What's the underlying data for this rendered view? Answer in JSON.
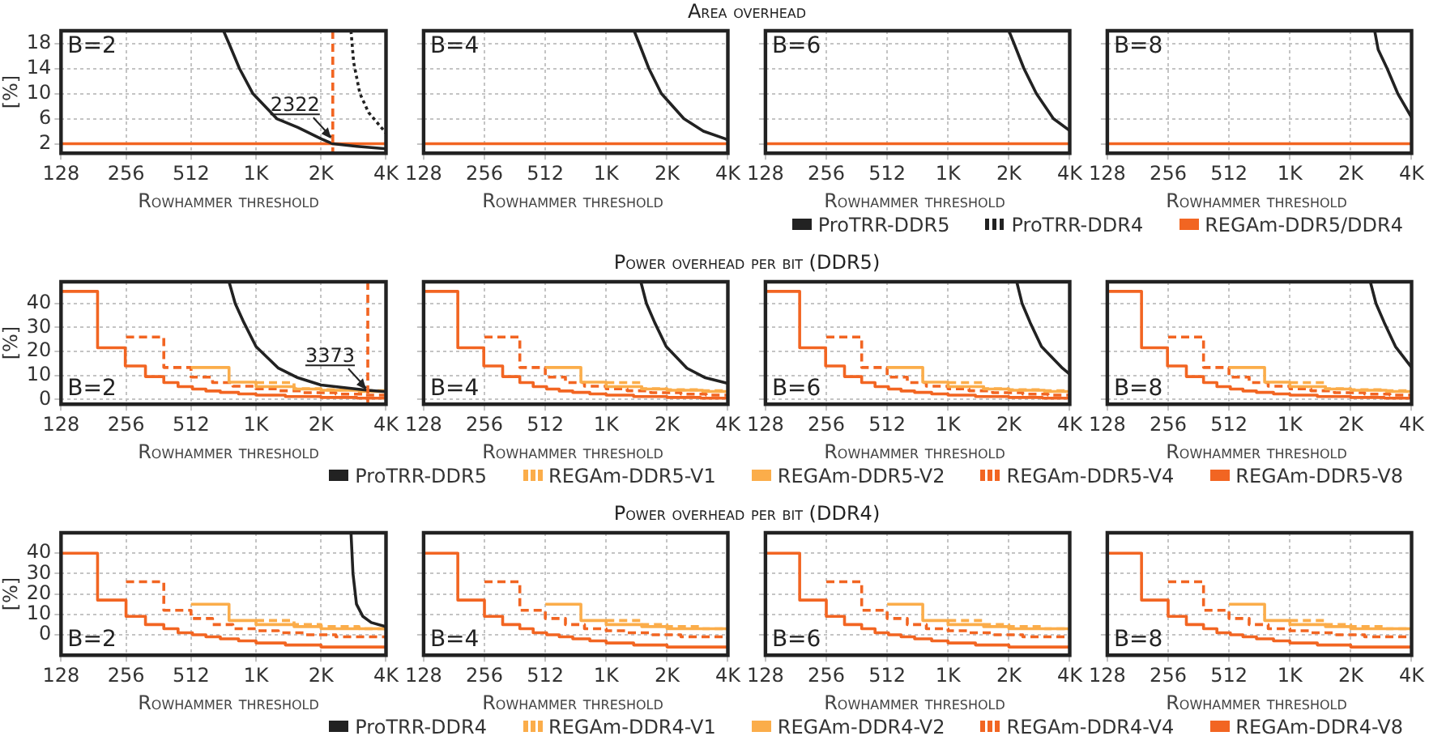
{
  "chart_data": [
    {
      "type": "line",
      "xlabel": "Rowhammer threshold",
      "ylabel": "[%]",
      "log": "x",
      "grid": true,
      "legend": "bottom",
      "xlim": [
        128,
        4096
      ],
      "ylim": [
        0.5,
        20
      ],
      "xticks": [
        128,
        256,
        512,
        {
          "value": 1024,
          "label": "1K"
        },
        {
          "value": 2048,
          "label": "2K"
        },
        {
          "value": 4096,
          "label": "4K"
        }
      ],
      "yticks": [
        2,
        6,
        10,
        14,
        18
      ],
      "annotations": [
        "B=2"
      ],
      "ref_lines": [
        {
          "axis": "x",
          "value": 2322,
          "label": "2322",
          "color": "#f26522",
          "line_style": "dashed"
        }
      ],
      "series": [
        {
          "name": "ProTRR-DDR5",
          "type": "line",
          "color": "#222222",
          "line_style": "solid",
          "x": [
            724,
            767,
            858,
            990,
            1278,
            1600,
            2048,
            2322,
            3000,
            4096
          ],
          "values": [
            20,
            18,
            14,
            10,
            6,
            4.6,
            2.8,
            2,
            1.6,
            1.2
          ]
        },
        {
          "name": "ProTRR-DDR4",
          "type": "line",
          "color": "#222222",
          "line_style": "dotted",
          "x": [
            2820,
            2900,
            3100,
            3400,
            4096
          ],
          "values": [
            20,
            15,
            10,
            7,
            3.7
          ]
        },
        {
          "name": "REGAm-DDR5/DDR4",
          "type": "line",
          "color": "#f26522",
          "line_style": "solid",
          "x": [
            128,
            4096
          ],
          "values": [
            2,
            2
          ]
        }
      ]
    },
    {
      "type": "line",
      "title": "Area overhead",
      "xlabel": "Rowhammer threshold",
      "log": "x",
      "grid": true,
      "tick_labels": "x",
      "xlim": [
        128,
        4096
      ],
      "ylim": [
        0.5,
        20
      ],
      "xticks": [
        128,
        256,
        512,
        {
          "value": 1024,
          "label": "1K"
        },
        {
          "value": 2048,
          "label": "2K"
        },
        {
          "value": 4096,
          "label": "4K"
        }
      ],
      "yticks": [
        2,
        6,
        10,
        14,
        18
      ],
      "annotations": [
        "B=4"
      ],
      "series": [
        {
          "type": "line",
          "color": "#222222",
          "line_style": "solid",
          "x": [
            1408,
            1490,
            1665,
            1920,
            2480,
            3100,
            3972,
            4096
          ],
          "values": [
            20,
            18,
            14,
            10,
            6,
            4,
            2.8,
            2.6
          ]
        },
        {
          "type": "line",
          "color": "#f26522",
          "line_style": "solid",
          "x": [
            128,
            4096
          ],
          "values": [
            2,
            2
          ]
        }
      ]
    },
    {
      "type": "line",
      "xlabel": "Rowhammer threshold",
      "log": "x",
      "grid": true,
      "tick_labels": "x",
      "xlim": [
        128,
        4096
      ],
      "ylim": [
        0.5,
        20
      ],
      "xticks": [
        128,
        256,
        512,
        {
          "value": 1024,
          "label": "1K"
        },
        {
          "value": 2048,
          "label": "2K"
        },
        {
          "value": 4096,
          "label": "4K"
        }
      ],
      "yticks": [
        2,
        6,
        10,
        14,
        18
      ],
      "annotations": [
        "B=6"
      ],
      "series": [
        {
          "type": "line",
          "color": "#222222",
          "line_style": "solid",
          "x": [
            2048,
            2170,
            2430,
            2800,
            3400,
            4096
          ],
          "values": [
            20,
            18,
            14,
            10,
            6,
            4.1
          ]
        },
        {
          "type": "line",
          "color": "#f26522",
          "line_style": "solid",
          "x": [
            128,
            4096
          ],
          "values": [
            2,
            2
          ]
        }
      ]
    },
    {
      "type": "line",
      "xlabel": "Rowhammer threshold",
      "log": "x",
      "grid": true,
      "tick_labels": "x",
      "xlim": [
        128,
        4096
      ],
      "ylim": [
        0.5,
        20
      ],
      "xticks": [
        128,
        256,
        512,
        {
          "value": 1024,
          "label": "1K"
        },
        {
          "value": 2048,
          "label": "2K"
        },
        {
          "value": 4096,
          "label": "4K"
        }
      ],
      "yticks": [
        2,
        6,
        10,
        14,
        18
      ],
      "annotations": [
        "B=8"
      ],
      "series": [
        {
          "type": "line",
          "color": "#222222",
          "line_style": "solid",
          "x": [
            2690,
            2800,
            3100,
            3500,
            4096
          ],
          "values": [
            20,
            17,
            14,
            10,
            6.2
          ]
        },
        {
          "type": "line",
          "color": "#f26522",
          "line_style": "solid",
          "x": [
            128,
            4096
          ],
          "values": [
            2,
            2
          ]
        }
      ]
    },
    {
      "type": "line",
      "xlabel": "Rowhammer threshold",
      "ylabel": "[%]",
      "log": "x",
      "grid": true,
      "legend": "bottom",
      "xlim": [
        128,
        4096
      ],
      "ylim": [
        -2,
        49
      ],
      "xticks": [
        128,
        256,
        512,
        {
          "value": 1024,
          "label": "1K"
        },
        {
          "value": 2048,
          "label": "2K"
        },
        {
          "value": 4096,
          "label": "4K"
        }
      ],
      "yticks": [
        0,
        10,
        20,
        30,
        40
      ],
      "annotations": [
        "B=2"
      ],
      "ref_lines": [
        {
          "axis": "x",
          "value": 3373,
          "label": "3373",
          "color": "#f26522",
          "line_style": "dashed"
        }
      ],
      "series": [
        {
          "name": "ProTRR-DDR5",
          "type": "line",
          "color": "#222222",
          "line_style": "solid",
          "x": [
            768,
            820,
            900,
            1024,
            1300,
            1600,
            2048,
            3000,
            3373,
            4096
          ],
          "values": [
            49,
            40,
            32,
            22,
            13,
            9,
            6,
            4.3,
            3.8,
            3.2
          ]
        },
        {
          "name": "REGAm-DDR5-V1",
          "type": "step",
          "color": "#fbad4a",
          "line_style": "dashed",
          "x": [
            1024,
            1536,
            2048,
            3072,
            4096
          ],
          "values": [
            7,
            4.5,
            4,
            3.6,
            3.3
          ]
        },
        {
          "name": "REGAm-DDR5-V2",
          "type": "step",
          "color": "#fbad4a",
          "line_style": "solid",
          "x": [
            512,
            768,
            1024,
            1536,
            2048,
            3072,
            4096
          ],
          "values": [
            13.3,
            7.2,
            5.3,
            4.3,
            3.8,
            3.3,
            2.9
          ]
        },
        {
          "name": "REGAm-DDR5-V4",
          "type": "step",
          "color": "#f26522",
          "line_style": "dashed",
          "x": [
            256,
            383,
            512,
            644,
            800,
            1024,
            1300,
            1700,
            2400,
            3200,
            4096
          ],
          "values": [
            26,
            13.3,
            9.3,
            7,
            5.5,
            4.4,
            3.6,
            2.8,
            2.2,
            1.8,
            1.5
          ]
        },
        {
          "name": "REGAm-DDR5-V8",
          "type": "step",
          "color": "#f26522",
          "line_style": "solid",
          "x": [
            128,
            189,
            254,
            315,
            383,
            446,
            520,
            600,
            700,
            850,
            1024,
            1400,
            2048,
            3000,
            4096
          ],
          "values": [
            45,
            21.5,
            13.9,
            9.5,
            7,
            5.3,
            4.3,
            3.5,
            2.9,
            2.3,
            1.8,
            1.2,
            0.8,
            0.5,
            0.3
          ]
        }
      ]
    },
    {
      "type": "line",
      "title": "Power overhead per bit (DDR5)",
      "xlabel": "Rowhammer threshold",
      "log": "x",
      "grid": true,
      "tick_labels": "x",
      "xlim": [
        128,
        4096
      ],
      "ylim": [
        -2,
        49
      ],
      "xticks": [
        128,
        256,
        512,
        {
          "value": 1024,
          "label": "1K"
        },
        {
          "value": 2048,
          "label": "2K"
        },
        {
          "value": 4096,
          "label": "4K"
        }
      ],
      "yticks": [
        0,
        10,
        20,
        30,
        40
      ],
      "annotations": [
        "B=4"
      ],
      "series": [
        {
          "type": "line",
          "color": "#222222",
          "line_style": "solid",
          "x": [
            1520,
            1620,
            1780,
            2030,
            2570,
            3170,
            4096
          ],
          "values": [
            49,
            40,
            32,
            22,
            13,
            9,
            6.7
          ]
        },
        {
          "type": "step",
          "color": "#fbad4a",
          "line_style": "dashed",
          "x": [
            1024,
            1536,
            2048,
            3072,
            4096
          ],
          "values": [
            7,
            4.5,
            4,
            3.6,
            3.3
          ]
        },
        {
          "type": "step",
          "color": "#fbad4a",
          "line_style": "solid",
          "x": [
            512,
            768,
            1024,
            1536,
            2048,
            3072,
            4096
          ],
          "values": [
            13.3,
            7.2,
            5.3,
            4.3,
            3.8,
            3.3,
            2.9
          ]
        },
        {
          "type": "step",
          "color": "#f26522",
          "line_style": "dashed",
          "x": [
            256,
            383,
            512,
            644,
            800,
            1024,
            1300,
            1700,
            2400,
            3200,
            4096
          ],
          "values": [
            26,
            13.3,
            9.3,
            7,
            5.5,
            4.4,
            3.6,
            2.8,
            2.2,
            1.8,
            1.5
          ]
        },
        {
          "type": "step",
          "color": "#f26522",
          "line_style": "solid",
          "x": [
            128,
            189,
            254,
            315,
            383,
            446,
            520,
            600,
            700,
            850,
            1024,
            1400,
            2048,
            3000,
            4096
          ],
          "values": [
            45,
            21.5,
            13.9,
            9.5,
            7,
            5.3,
            4.3,
            3.5,
            2.9,
            2.3,
            1.8,
            1.2,
            0.8,
            0.5,
            0.3
          ]
        }
      ]
    },
    {
      "type": "line",
      "xlabel": "Rowhammer threshold",
      "log": "x",
      "grid": true,
      "tick_labels": "x",
      "xlim": [
        128,
        4096
      ],
      "ylim": [
        -2,
        49
      ],
      "xticks": [
        128,
        256,
        512,
        {
          "value": 1024,
          "label": "1K"
        },
        {
          "value": 2048,
          "label": "2K"
        },
        {
          "value": 4096,
          "label": "4K"
        }
      ],
      "yticks": [
        0,
        10,
        20,
        30,
        40
      ],
      "annotations": [
        "B=6"
      ],
      "series": [
        {
          "type": "line",
          "color": "#222222",
          "line_style": "solid",
          "x": [
            2240,
            2380,
            2610,
            2970,
            3770,
            4096
          ],
          "values": [
            49,
            40,
            32,
            22,
            13,
            10.5
          ]
        },
        {
          "type": "step",
          "color": "#fbad4a",
          "line_style": "dashed",
          "x": [
            1024,
            1536,
            2048,
            3072,
            4096
          ],
          "values": [
            7,
            4.5,
            4,
            3.6,
            3.3
          ]
        },
        {
          "type": "step",
          "color": "#fbad4a",
          "line_style": "solid",
          "x": [
            512,
            768,
            1024,
            1536,
            2048,
            3072,
            4096
          ],
          "values": [
            13.3,
            7.2,
            5.3,
            4.3,
            3.8,
            3.3,
            2.9
          ]
        },
        {
          "type": "step",
          "color": "#f26522",
          "line_style": "dashed",
          "x": [
            256,
            383,
            512,
            644,
            800,
            1024,
            1300,
            1700,
            2400,
            3200,
            4096
          ],
          "values": [
            26,
            13.3,
            9.3,
            7,
            5.5,
            4.4,
            3.6,
            2.8,
            2.2,
            1.8,
            1.5
          ]
        },
        {
          "type": "step",
          "color": "#f26522",
          "line_style": "solid",
          "x": [
            128,
            189,
            254,
            315,
            383,
            446,
            520,
            600,
            700,
            850,
            1024,
            1400,
            2048,
            3000,
            4096
          ],
          "values": [
            45,
            21.5,
            13.9,
            9.5,
            7,
            5.3,
            4.3,
            3.5,
            2.9,
            2.3,
            1.8,
            1.2,
            0.8,
            0.5,
            0.3
          ]
        }
      ]
    },
    {
      "type": "line",
      "xlabel": "Rowhammer threshold",
      "log": "x",
      "grid": true,
      "tick_labels": "x",
      "xlim": [
        128,
        4096
      ],
      "ylim": [
        -2,
        49
      ],
      "xticks": [
        128,
        256,
        512,
        {
          "value": 1024,
          "label": "1K"
        },
        {
          "value": 2048,
          "label": "2K"
        },
        {
          "value": 4096,
          "label": "4K"
        }
      ],
      "yticks": [
        0,
        10,
        20,
        30,
        40
      ],
      "annotations": [
        "B=8"
      ],
      "series": [
        {
          "type": "line",
          "color": "#222222",
          "line_style": "solid",
          "x": [
            2560,
            2730,
            3000,
            3410,
            4096
          ],
          "values": [
            49,
            40,
            32,
            22,
            13.3
          ]
        },
        {
          "type": "step",
          "color": "#fbad4a",
          "line_style": "dashed",
          "x": [
            1024,
            1536,
            2048,
            3072,
            4096
          ],
          "values": [
            7,
            4.5,
            4,
            3.6,
            3.3
          ]
        },
        {
          "type": "step",
          "color": "#fbad4a",
          "line_style": "solid",
          "x": [
            512,
            768,
            1024,
            1536,
            2048,
            3072,
            4096
          ],
          "values": [
            13.3,
            7.2,
            5.3,
            4.3,
            3.8,
            3.3,
            2.9
          ]
        },
        {
          "type": "step",
          "color": "#f26522",
          "line_style": "dashed",
          "x": [
            256,
            383,
            512,
            644,
            800,
            1024,
            1300,
            1700,
            2400,
            3200,
            4096
          ],
          "values": [
            26,
            13.3,
            9.3,
            7,
            5.5,
            4.4,
            3.6,
            2.8,
            2.2,
            1.8,
            1.5
          ]
        },
        {
          "type": "step",
          "color": "#f26522",
          "line_style": "solid",
          "x": [
            128,
            189,
            254,
            315,
            383,
            446,
            520,
            600,
            700,
            850,
            1024,
            1400,
            2048,
            3000,
            4096
          ],
          "values": [
            45,
            21.5,
            13.9,
            9.5,
            7,
            5.3,
            4.3,
            3.5,
            2.9,
            2.3,
            1.8,
            1.2,
            0.8,
            0.5,
            0.3
          ]
        }
      ]
    },
    {
      "type": "line",
      "xlabel": "Rowhammer threshold",
      "ylabel": "[%]",
      "log": "x",
      "grid": true,
      "legend": "bottom",
      "xlim": [
        128,
        4096
      ],
      "ylim": [
        -10,
        50
      ],
      "xticks": [
        128,
        256,
        512,
        {
          "value": 1024,
          "label": "1K"
        },
        {
          "value": 2048,
          "label": "2K"
        },
        {
          "value": 4096,
          "label": "4K"
        }
      ],
      "yticks": [
        0,
        10,
        20,
        30,
        40
      ],
      "annotations": [
        "B=2"
      ],
      "series": [
        {
          "name": "ProTRR-DDR4",
          "type": "line",
          "color": "#222222",
          "line_style": "solid",
          "x": [
            2820,
            2880,
            2990,
            3200,
            3500,
            4096
          ],
          "values": [
            50,
            30,
            15,
            9,
            6,
            4
          ]
        },
        {
          "name": "REGAm-DDR4-V1",
          "type": "step",
          "color": "#fbad4a",
          "line_style": "dashed",
          "x": [
            1024,
            1536,
            2048,
            3072,
            4096
          ],
          "values": [
            7,
            5,
            4,
            3,
            3
          ]
        },
        {
          "name": "REGAm-DDR4-V2",
          "type": "step",
          "color": "#fbad4a",
          "line_style": "solid",
          "x": [
            512,
            768,
            1024,
            1536,
            2048,
            3072,
            4096
          ],
          "values": [
            15,
            7,
            5,
            4,
            3,
            3,
            2
          ]
        },
        {
          "name": "REGAm-DDR4-V4",
          "type": "step",
          "color": "#f26522",
          "line_style": "dashed",
          "x": [
            256,
            383,
            512,
            644,
            800,
            1024,
            1300,
            1700,
            2400,
            3200,
            4096
          ],
          "values": [
            26,
            12,
            8,
            5,
            3,
            2,
            1,
            0,
            -1,
            -1,
            -2
          ]
        },
        {
          "name": "REGAm-DDR4-V8",
          "type": "step",
          "color": "#f26522",
          "line_style": "solid",
          "x": [
            128,
            189,
            256,
            315,
            383,
            446,
            520,
            600,
            700,
            850,
            1024,
            1400,
            2048,
            3000,
            4096
          ],
          "values": [
            40,
            17,
            9,
            5,
            3,
            1,
            0,
            -1,
            -2,
            -3,
            -4,
            -5,
            -6,
            -6,
            -6
          ]
        }
      ]
    },
    {
      "type": "line",
      "title": "Power overhead per bit (DDR4)",
      "xlabel": "Rowhammer threshold",
      "log": "x",
      "grid": true,
      "tick_labels": "x",
      "xlim": [
        128,
        4096
      ],
      "ylim": [
        -10,
        50
      ],
      "xticks": [
        128,
        256,
        512,
        {
          "value": 1024,
          "label": "1K"
        },
        {
          "value": 2048,
          "label": "2K"
        },
        {
          "value": 4096,
          "label": "4K"
        }
      ],
      "yticks": [
        0,
        10,
        20,
        30,
        40
      ],
      "annotations": [
        "B=4"
      ],
      "series": [
        {
          "type": "step",
          "color": "#fbad4a",
          "line_style": "dashed",
          "x": [
            1024,
            1536,
            2048,
            3072,
            4096
          ],
          "values": [
            7,
            5,
            4,
            3,
            3
          ]
        },
        {
          "type": "step",
          "color": "#fbad4a",
          "line_style": "solid",
          "x": [
            512,
            768,
            1024,
            1536,
            2048,
            3072,
            4096
          ],
          "values": [
            15,
            7,
            5,
            4,
            3,
            3,
            2
          ]
        },
        {
          "type": "step",
          "color": "#f26522",
          "line_style": "dashed",
          "x": [
            256,
            383,
            512,
            644,
            800,
            1024,
            1300,
            1700,
            2400,
            3200,
            4096
          ],
          "values": [
            26,
            12,
            8,
            5,
            3,
            2,
            1,
            0,
            -1,
            -1,
            -2
          ]
        },
        {
          "type": "step",
          "color": "#f26522",
          "line_style": "solid",
          "x": [
            128,
            189,
            256,
            315,
            383,
            446,
            520,
            600,
            700,
            850,
            1024,
            1400,
            2048,
            3000,
            4096
          ],
          "values": [
            40,
            17,
            9,
            5,
            3,
            1,
            0,
            -1,
            -2,
            -3,
            -4,
            -5,
            -6,
            -6,
            -6
          ]
        }
      ]
    },
    {
      "type": "line",
      "xlabel": "Rowhammer threshold",
      "log": "x",
      "grid": true,
      "tick_labels": "x",
      "xlim": [
        128,
        4096
      ],
      "ylim": [
        -10,
        50
      ],
      "xticks": [
        128,
        256,
        512,
        {
          "value": 1024,
          "label": "1K"
        },
        {
          "value": 2048,
          "label": "2K"
        },
        {
          "value": 4096,
          "label": "4K"
        }
      ],
      "yticks": [
        0,
        10,
        20,
        30,
        40
      ],
      "annotations": [
        "B=6"
      ],
      "series": [
        {
          "type": "step",
          "color": "#fbad4a",
          "line_style": "dashed",
          "x": [
            1024,
            1536,
            2048,
            3072,
            4096
          ],
          "values": [
            7,
            5,
            4,
            3,
            3
          ]
        },
        {
          "type": "step",
          "color": "#fbad4a",
          "line_style": "solid",
          "x": [
            512,
            768,
            1024,
            1536,
            2048,
            3072,
            4096
          ],
          "values": [
            15,
            7,
            5,
            4,
            3,
            3,
            2
          ]
        },
        {
          "type": "step",
          "color": "#f26522",
          "line_style": "dashed",
          "x": [
            256,
            383,
            512,
            644,
            800,
            1024,
            1300,
            1700,
            2400,
            3200,
            4096
          ],
          "values": [
            26,
            12,
            8,
            5,
            3,
            2,
            1,
            0,
            -1,
            -1,
            -2
          ]
        },
        {
          "type": "step",
          "color": "#f26522",
          "line_style": "solid",
          "x": [
            128,
            189,
            256,
            315,
            383,
            446,
            520,
            600,
            700,
            850,
            1024,
            1400,
            2048,
            3000,
            4096
          ],
          "values": [
            40,
            17,
            9,
            5,
            3,
            1,
            0,
            -1,
            -2,
            -3,
            -4,
            -5,
            -6,
            -6,
            -6
          ]
        }
      ]
    },
    {
      "type": "line",
      "xlabel": "Rowhammer threshold",
      "log": "x",
      "grid": true,
      "tick_labels": "x",
      "xlim": [
        128,
        4096
      ],
      "ylim": [
        -10,
        50
      ],
      "xticks": [
        128,
        256,
        512,
        {
          "value": 1024,
          "label": "1K"
        },
        {
          "value": 2048,
          "label": "2K"
        },
        {
          "value": 4096,
          "label": "4K"
        }
      ],
      "yticks": [
        0,
        10,
        20,
        30,
        40
      ],
      "annotations": [
        "B=8"
      ],
      "series": [
        {
          "type": "step",
          "color": "#fbad4a",
          "line_style": "dashed",
          "x": [
            1024,
            1536,
            2048,
            3072,
            4096
          ],
          "values": [
            7,
            5,
            4,
            3,
            3
          ]
        },
        {
          "type": "step",
          "color": "#fbad4a",
          "line_style": "solid",
          "x": [
            512,
            768,
            1024,
            1536,
            2048,
            3072,
            4096
          ],
          "values": [
            15,
            7,
            5,
            4,
            3,
            3,
            2
          ]
        },
        {
          "type": "step",
          "color": "#f26522",
          "line_style": "dashed",
          "x": [
            256,
            383,
            512,
            644,
            800,
            1024,
            1300,
            1700,
            2400,
            3200,
            4096
          ],
          "values": [
            26,
            12,
            8,
            5,
            3,
            2,
            1,
            0,
            -1,
            -1,
            -2
          ]
        },
        {
          "type": "step",
          "color": "#f26522",
          "line_style": "solid",
          "x": [
            128,
            189,
            256,
            315,
            383,
            446,
            520,
            600,
            700,
            850,
            1024,
            1400,
            2048,
            3000,
            4096
          ],
          "values": [
            40,
            17,
            9,
            5,
            3,
            1,
            0,
            -1,
            -2,
            -3,
            -4,
            -5,
            -6,
            -6,
            -6
          ]
        }
      ]
    }
  ]
}
